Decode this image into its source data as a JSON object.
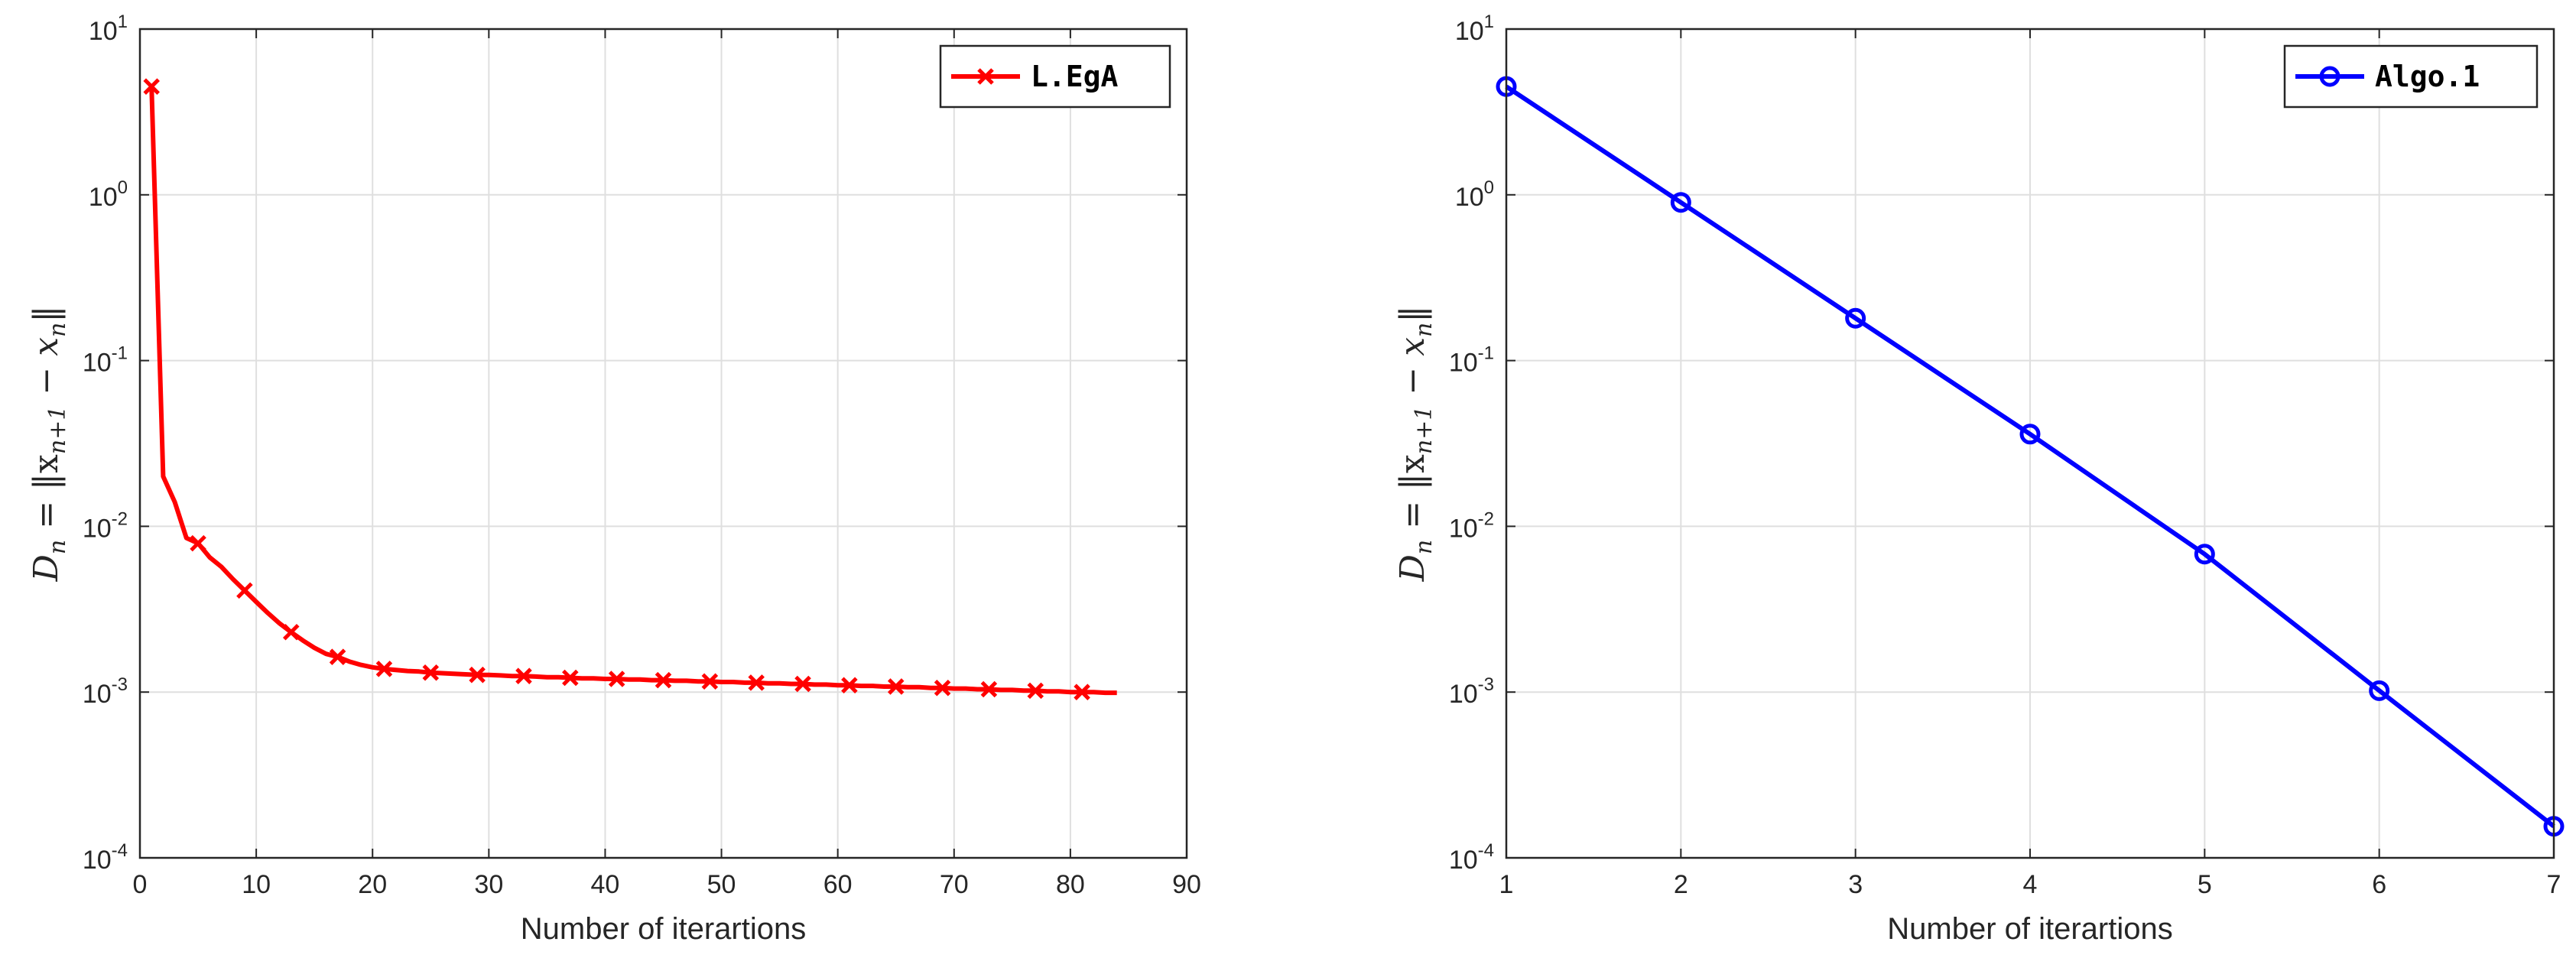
{
  "chart_data": [
    {
      "type": "line",
      "ylabel": "D_n = ||x_{n+1} − x_n||",
      "xlabel": "Number of iterartions",
      "xlim": [
        0,
        90
      ],
      "xticks": [
        0,
        10,
        20,
        30,
        40,
        50,
        60,
        70,
        80,
        90
      ],
      "yscale": "log",
      "ylim": [
        0.0001,
        10
      ],
      "yticks": [
        0.0001,
        0.001,
        0.01,
        0.1,
        1,
        10
      ],
      "ytick_labels": [
        [
          "10",
          "-4"
        ],
        [
          "10",
          "-3"
        ],
        [
          "10",
          "-2"
        ],
        [
          "10",
          "-1"
        ],
        [
          "10",
          "0"
        ],
        [
          "10",
          "1"
        ]
      ],
      "grid": true,
      "legend_position": "top-right",
      "series": [
        {
          "name": "L.EgA",
          "color": "#ff0000",
          "marker": "x",
          "x": [
            1,
            2,
            3,
            4,
            5,
            6,
            7,
            8,
            9,
            10,
            11,
            12,
            13,
            14,
            15,
            16,
            17,
            18,
            19,
            20,
            21,
            22,
            23,
            24,
            25,
            26,
            27,
            28,
            29,
            30,
            31,
            32,
            33,
            34,
            35,
            36,
            37,
            38,
            39,
            40,
            41,
            42,
            43,
            44,
            45,
            46,
            47,
            48,
            49,
            50,
            51,
            52,
            53,
            54,
            55,
            56,
            57,
            58,
            59,
            60,
            61,
            62,
            63,
            64,
            65,
            66,
            67,
            68,
            69,
            70,
            71,
            72,
            73,
            74,
            75,
            76,
            77,
            78,
            79,
            80,
            81,
            82,
            83,
            84
          ],
          "y": [
            4.5,
            0.02,
            0.014,
            0.0085,
            0.0079,
            0.0065,
            0.0057,
            0.0048,
            0.0041,
            0.0035,
            0.003,
            0.0026,
            0.0023,
            0.00205,
            0.00185,
            0.0017,
            0.00163,
            0.00153,
            0.00146,
            0.00141,
            0.00138,
            0.00136,
            0.00134,
            0.00133,
            0.00131,
            0.0013,
            0.00129,
            0.00128,
            0.00127,
            0.00127,
            0.00126,
            0.00125,
            0.00125,
            0.00124,
            0.00123,
            0.00123,
            0.00122,
            0.00121,
            0.00121,
            0.0012,
            0.0012,
            0.00119,
            0.00119,
            0.00118,
            0.00118,
            0.00117,
            0.00117,
            0.00116,
            0.00116,
            0.00115,
            0.00115,
            0.00114,
            0.00114,
            0.00113,
            0.00113,
            0.00112,
            0.00112,
            0.00111,
            0.00111,
            0.0011,
            0.0011,
            0.00109,
            0.00109,
            0.00108,
            0.00108,
            0.00107,
            0.00107,
            0.00106,
            0.00106,
            0.00105,
            0.00105,
            0.00104,
            0.00104,
            0.00103,
            0.00103,
            0.00102,
            0.00102,
            0.00101,
            0.00101,
            0.001,
            0.001,
            0.001,
            0.00099,
            0.00099
          ],
          "marker_indices": [
            0,
            4,
            8,
            12,
            16,
            20,
            24,
            28,
            32,
            36,
            40,
            44,
            48,
            52,
            56,
            60,
            64,
            68,
            72,
            76,
            80
          ]
        }
      ]
    },
    {
      "type": "line",
      "ylabel": "D_n = ||x_{n+1} − x_n||",
      "xlabel": "Number of iterartions",
      "xlim": [
        1,
        7
      ],
      "xticks": [
        1,
        2,
        3,
        4,
        5,
        6,
        7
      ],
      "yscale": "log",
      "ylim": [
        0.0001,
        10
      ],
      "yticks": [
        0.0001,
        0.001,
        0.01,
        0.1,
        1,
        10
      ],
      "ytick_labels": [
        [
          "10",
          "-4"
        ],
        [
          "10",
          "-3"
        ],
        [
          "10",
          "-2"
        ],
        [
          "10",
          "-1"
        ],
        [
          "10",
          "0"
        ],
        [
          "10",
          "1"
        ]
      ],
      "grid": true,
      "legend_position": "top-right",
      "series": [
        {
          "name": "Algo.1",
          "color": "#0000ff",
          "marker": "o",
          "x": [
            1,
            2,
            3,
            4,
            5,
            6,
            7
          ],
          "y": [
            4.5,
            0.9,
            0.18,
            0.036,
            0.0068,
            0.00102,
            0.000155
          ]
        }
      ]
    }
  ]
}
